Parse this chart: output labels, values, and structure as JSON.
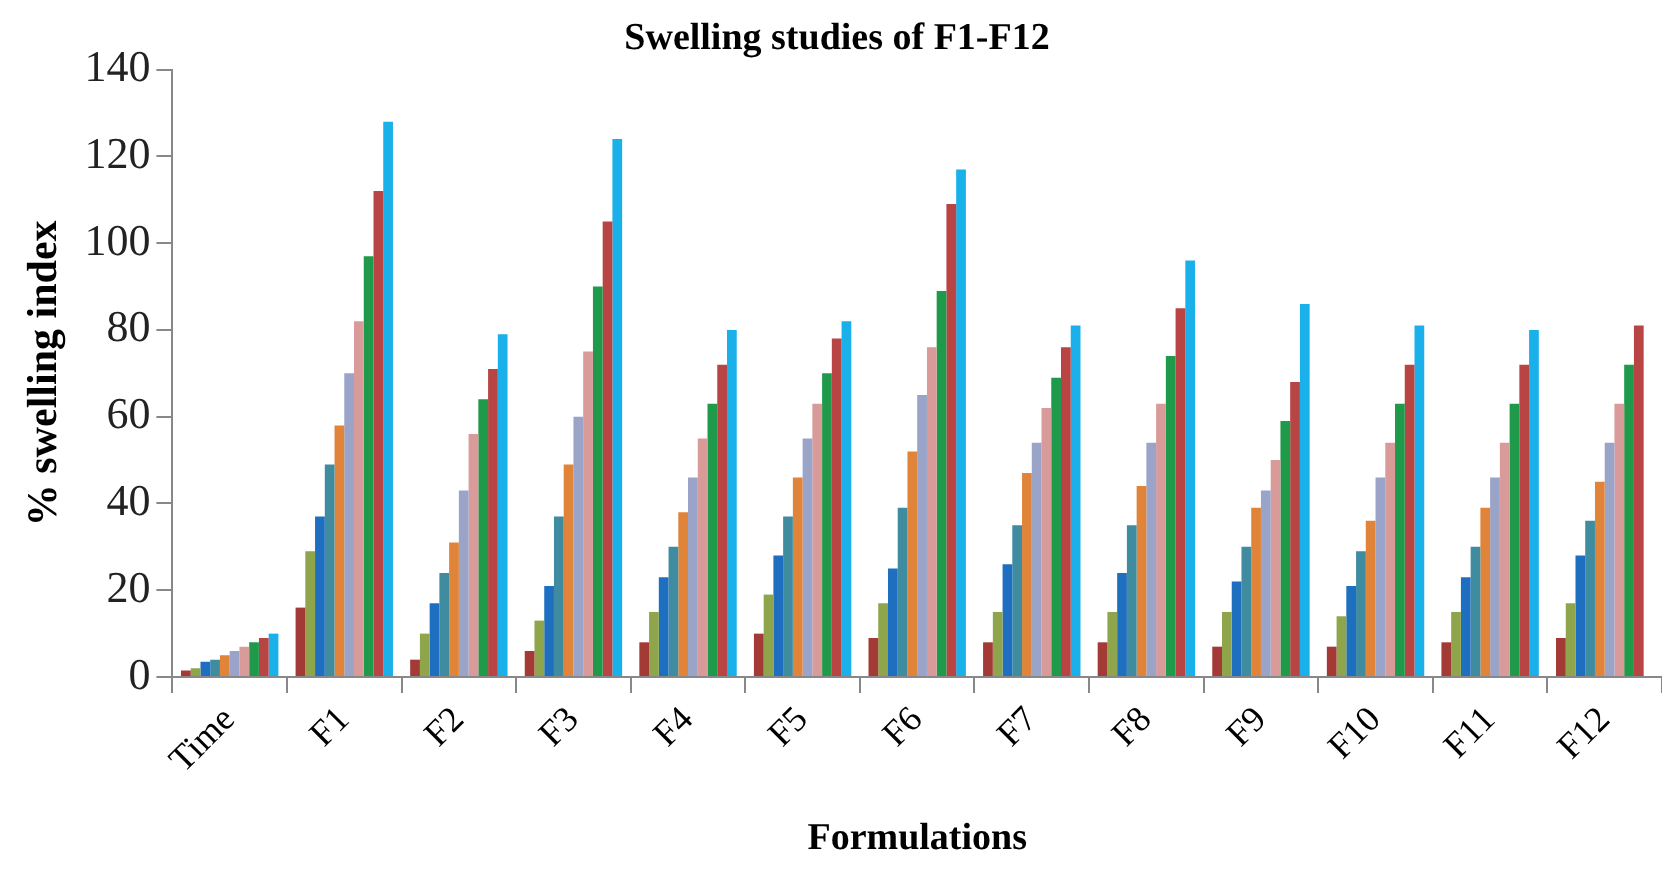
{
  "chart_data": {
    "type": "bar",
    "title": "Swelling studies of F1-F12",
    "xlabel": "Formulations",
    "ylabel": "% swelling index",
    "categories": [
      "Time",
      "F1",
      "F2",
      "F3",
      "F4",
      "F5",
      "F6",
      "F7",
      "F8",
      "F9",
      "F10",
      "F11",
      "F12"
    ],
    "series": [
      {
        "color": "#a33a35",
        "values": [
          1.5,
          16,
          4,
          6,
          8,
          10,
          9,
          8,
          8,
          7,
          7,
          8,
          9
        ]
      },
      {
        "color": "#8ea54b",
        "values": [
          2,
          29,
          10,
          13,
          15,
          19,
          17,
          15,
          15,
          15,
          14,
          15,
          17
        ]
      },
      {
        "color": "#1f6fc0",
        "values": [
          3.5,
          37,
          17,
          21,
          23,
          28,
          25,
          26,
          24,
          22,
          21,
          23,
          28
        ]
      },
      {
        "color": "#3f8ca0",
        "values": [
          4,
          49,
          24,
          37,
          30,
          37,
          39,
          35,
          35,
          30,
          29,
          30,
          36
        ]
      },
      {
        "color": "#e0843a",
        "values": [
          5,
          58,
          31,
          49,
          38,
          46,
          52,
          47,
          44,
          39,
          36,
          39,
          45
        ]
      },
      {
        "color": "#9aa3c8",
        "values": [
          6,
          70,
          43,
          60,
          46,
          55,
          65,
          54,
          54,
          43,
          46,
          46,
          54
        ]
      },
      {
        "color": "#d99a9a",
        "values": [
          7,
          82,
          56,
          75,
          55,
          63,
          76,
          62,
          63,
          50,
          54,
          54,
          63
        ]
      },
      {
        "color": "#1e9a4a",
        "values": [
          8,
          97,
          64,
          90,
          63,
          70,
          89,
          69,
          74,
          59,
          63,
          63,
          72
        ]
      },
      {
        "color": "#b84444",
        "values": [
          9,
          112,
          71,
          105,
          72,
          78,
          109,
          76,
          85,
          68,
          72,
          72,
          81
        ]
      },
      {
        "color": "#1ab0ea",
        "values": [
          10,
          128,
          79,
          124,
          80,
          82,
          117,
          81,
          96,
          86,
          81,
          80,
          null
        ]
      }
    ],
    "ylim": [
      0,
      140
    ],
    "yticks": [
      0,
      20,
      40,
      60,
      80,
      100,
      120,
      140
    ],
    "grid": false,
    "legend": false
  }
}
